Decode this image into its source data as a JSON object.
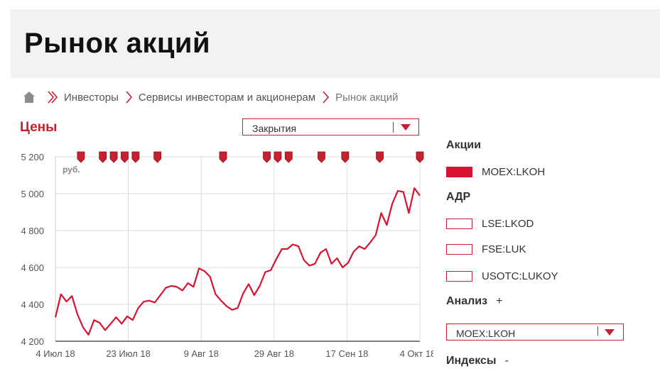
{
  "page": {
    "title": "Рынок акций"
  },
  "breadcrumb": {
    "items": [
      "Инвесторы",
      "Сервисы инвесторам и акционерам"
    ],
    "current": "Рынок акций"
  },
  "prices": {
    "heading": "Цены",
    "select_value": "Закрытия"
  },
  "sidebar": {
    "shares_heading": "Акции",
    "shares": [
      {
        "label": "MOEX:LKOH",
        "active": true
      }
    ],
    "adr_heading": "АДР",
    "adr": [
      {
        "label": "LSE:LKOD",
        "active": false
      },
      {
        "label": "FSE:LUK",
        "active": false
      },
      {
        "label": "USOTC:LUKOY",
        "active": false
      }
    ],
    "analysis_heading": "Анализ",
    "analysis_toggle": "+",
    "analysis_select": "MOEX:LKOH",
    "indices_heading": "Индексы",
    "indices_toggle": "-"
  },
  "colors": {
    "accent": "#c8202f",
    "line": "#d7142f",
    "grid": "#d9d9d9"
  },
  "chart_data": {
    "type": "line",
    "unit_label": "руб.",
    "ylim": [
      4200,
      5200
    ],
    "y_ticks": [
      4200,
      4400,
      4600,
      4800,
      5000,
      5200
    ],
    "y_tick_labels": [
      "4 200",
      "4 400",
      "4 600",
      "4 800",
      "5 000",
      "5 200"
    ],
    "x_ticks": [
      "4 Июл 18",
      "23 Июл 18",
      "9 Авг 18",
      "29 Авг 18",
      "17 Сен 18",
      "4 Окт 18"
    ],
    "grid": true,
    "event_marker_count": 14,
    "series": [
      {
        "name": "MOEX:LKOH",
        "values": [
          4330,
          4455,
          4415,
          4445,
          4345,
          4275,
          4235,
          4315,
          4300,
          4260,
          4295,
          4330,
          4295,
          4335,
          4315,
          4380,
          4415,
          4420,
          4410,
          4450,
          4490,
          4500,
          4495,
          4475,
          4515,
          4495,
          4595,
          4580,
          4550,
          4455,
          4420,
          4390,
          4370,
          4380,
          4460,
          4510,
          4450,
          4500,
          4575,
          4585,
          4645,
          4700,
          4700,
          4725,
          4715,
          4640,
          4610,
          4620,
          4680,
          4700,
          4620,
          4650,
          4600,
          4625,
          4685,
          4715,
          4700,
          4735,
          4775,
          4895,
          4830,
          4945,
          5015,
          5010,
          4895,
          5030,
          4990
        ]
      }
    ]
  }
}
